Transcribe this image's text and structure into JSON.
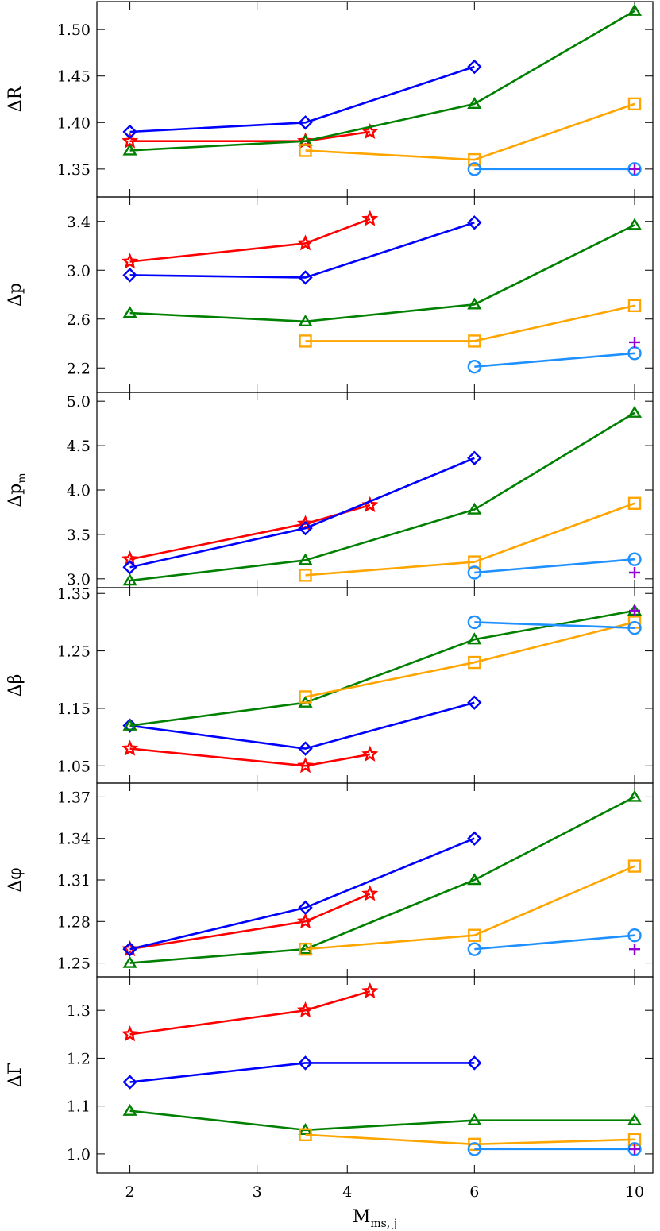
{
  "chart_data": {
    "type": "line",
    "x_scale": "log",
    "xlim": [
      1.8,
      10.6
    ],
    "xticks": [
      2,
      3,
      4,
      6,
      10
    ],
    "xtick_labels": [
      "2",
      "3",
      "4",
      "6",
      "10"
    ],
    "xlabel": {
      "main": "M",
      "sub": "ms, j"
    },
    "series_styles": [
      {
        "name": "series-red",
        "color": "#ff0000",
        "marker": "star"
      },
      {
        "name": "series-blue",
        "color": "#0000ff",
        "marker": "diamond"
      },
      {
        "name": "series-green",
        "color": "#008000",
        "marker": "triangle"
      },
      {
        "name": "series-orange",
        "color": "#ffa500",
        "marker": "square"
      },
      {
        "name": "series-lightblue",
        "color": "#1e90ff",
        "marker": "circle"
      },
      {
        "name": "series-purple",
        "color": "#9400d3",
        "marker": "plus"
      }
    ],
    "panels": [
      {
        "id": "dR",
        "ylabel": {
          "main": "ΔR",
          "sub": ""
        },
        "ylim": [
          1.32,
          1.53
        ],
        "yticks": [
          1.35,
          1.4,
          1.45,
          1.5
        ],
        "ytick_labels": [
          "1.35",
          "1.40",
          "1.45",
          "1.50"
        ],
        "series": [
          {
            "x": [
              2,
              3.5,
              4.3
            ],
            "y": [
              1.38,
              1.38,
              1.39
            ]
          },
          {
            "x": [
              2,
              3.5,
              6
            ],
            "y": [
              1.39,
              1.4,
              1.46
            ]
          },
          {
            "x": [
              2,
              3.5,
              6,
              10
            ],
            "y": [
              1.37,
              1.38,
              1.42,
              1.52
            ]
          },
          {
            "x": [
              3.5,
              6,
              10
            ],
            "y": [
              1.37,
              1.36,
              1.42
            ]
          },
          {
            "x": [
              6,
              10
            ],
            "y": [
              1.35,
              1.35
            ]
          },
          {
            "x": [
              10
            ],
            "y": [
              1.35
            ]
          }
        ]
      },
      {
        "id": "dp",
        "ylabel": {
          "main": "Δp",
          "sub": ""
        },
        "ylim": [
          2.0,
          3.6
        ],
        "yticks": [
          2.2,
          2.6,
          3.0,
          3.4
        ],
        "ytick_labels": [
          "2.2",
          "2.6",
          "3.0",
          "3.4"
        ],
        "series": [
          {
            "x": [
              2,
              3.5,
              4.3
            ],
            "y": [
              3.07,
              3.22,
              3.42
            ]
          },
          {
            "x": [
              2,
              3.5,
              6
            ],
            "y": [
              2.96,
              2.94,
              3.39
            ]
          },
          {
            "x": [
              2,
              3.5,
              6,
              10
            ],
            "y": [
              2.65,
              2.58,
              2.72,
              3.37
            ]
          },
          {
            "x": [
              3.5,
              6,
              10
            ],
            "y": [
              2.42,
              2.42,
              2.71
            ]
          },
          {
            "x": [
              6,
              10
            ],
            "y": [
              2.21,
              2.32
            ]
          },
          {
            "x": [
              10
            ],
            "y": [
              2.41
            ]
          }
        ]
      },
      {
        "id": "dpm",
        "ylabel": {
          "main": "Δp",
          "sub": "m"
        },
        "ylim": [
          2.9,
          5.1
        ],
        "yticks": [
          3.0,
          3.5,
          4.0,
          4.5,
          5.0
        ],
        "ytick_labels": [
          "3.0",
          "3.5",
          "4.0",
          "4.5",
          "5.0"
        ],
        "series": [
          {
            "x": [
              2,
              3.5,
              4.3
            ],
            "y": [
              3.22,
              3.62,
              3.83
            ]
          },
          {
            "x": [
              2,
              3.5,
              6
            ],
            "y": [
              3.13,
              3.57,
              4.36
            ]
          },
          {
            "x": [
              2,
              3.5,
              6,
              10
            ],
            "y": [
              2.98,
              3.21,
              3.78,
              4.87
            ]
          },
          {
            "x": [
              3.5,
              6,
              10
            ],
            "y": [
              3.04,
              3.19,
              3.85
            ]
          },
          {
            "x": [
              6,
              10
            ],
            "y": [
              3.07,
              3.22
            ]
          },
          {
            "x": [
              10
            ],
            "y": [
              3.07
            ]
          }
        ]
      },
      {
        "id": "dbeta",
        "ylabel": {
          "main": "Δβ",
          "sub": ""
        },
        "ylim": [
          1.02,
          1.36
        ],
        "yticks": [
          1.05,
          1.15,
          1.25,
          1.35
        ],
        "ytick_labels": [
          "1.05",
          "1.15",
          "1.25",
          "1.35"
        ],
        "series": [
          {
            "x": [
              2,
              3.5,
              4.3
            ],
            "y": [
              1.08,
              1.05,
              1.07
            ]
          },
          {
            "x": [
              2,
              3.5,
              6
            ],
            "y": [
              1.12,
              1.08,
              1.16
            ]
          },
          {
            "x": [
              2,
              3.5,
              6,
              10
            ],
            "y": [
              1.12,
              1.16,
              1.27,
              1.32
            ]
          },
          {
            "x": [
              3.5,
              6,
              10
            ],
            "y": [
              1.17,
              1.23,
              1.3
            ]
          },
          {
            "x": [
              6,
              10
            ],
            "y": [
              1.3,
              1.29
            ]
          },
          {
            "x": [
              10
            ],
            "y": [
              1.32
            ]
          }
        ]
      },
      {
        "id": "dphi",
        "ylabel": {
          "main": "Δφ",
          "sub": ""
        },
        "ylim": [
          1.24,
          1.38
        ],
        "yticks": [
          1.25,
          1.28,
          1.31,
          1.34,
          1.37
        ],
        "ytick_labels": [
          "1.25",
          "1.28",
          "1.31",
          "1.34",
          "1.37"
        ],
        "series": [
          {
            "x": [
              2,
              3.5,
              4.3
            ],
            "y": [
              1.26,
              1.28,
              1.3
            ]
          },
          {
            "x": [
              2,
              3.5,
              6
            ],
            "y": [
              1.26,
              1.29,
              1.34
            ]
          },
          {
            "x": [
              2,
              3.5,
              6,
              10
            ],
            "y": [
              1.25,
              1.26,
              1.31,
              1.37
            ]
          },
          {
            "x": [
              3.5,
              6,
              10
            ],
            "y": [
              1.26,
              1.27,
              1.32
            ]
          },
          {
            "x": [
              6,
              10
            ],
            "y": [
              1.26,
              1.27
            ]
          },
          {
            "x": [
              10
            ],
            "y": [
              1.26
            ]
          }
        ]
      },
      {
        "id": "dGamma",
        "ylabel": {
          "main": "ΔΓ",
          "sub": ""
        },
        "ylim": [
          0.96,
          1.37
        ],
        "yticks": [
          1.0,
          1.1,
          1.2,
          1.3
        ],
        "ytick_labels": [
          "1.0",
          "1.1",
          "1.2",
          "1.3"
        ],
        "series": [
          {
            "x": [
              2,
              3.5,
              4.3
            ],
            "y": [
              1.25,
              1.3,
              1.34
            ]
          },
          {
            "x": [
              2,
              3.5,
              6
            ],
            "y": [
              1.15,
              1.19,
              1.19
            ]
          },
          {
            "x": [
              2,
              3.5,
              6,
              10
            ],
            "y": [
              1.09,
              1.05,
              1.07,
              1.07
            ]
          },
          {
            "x": [
              3.5,
              6,
              10
            ],
            "y": [
              1.04,
              1.02,
              1.03
            ]
          },
          {
            "x": [
              6,
              10
            ],
            "y": [
              1.01,
              1.01
            ]
          },
          {
            "x": [
              10
            ],
            "y": [
              1.01
            ]
          }
        ]
      }
    ]
  }
}
